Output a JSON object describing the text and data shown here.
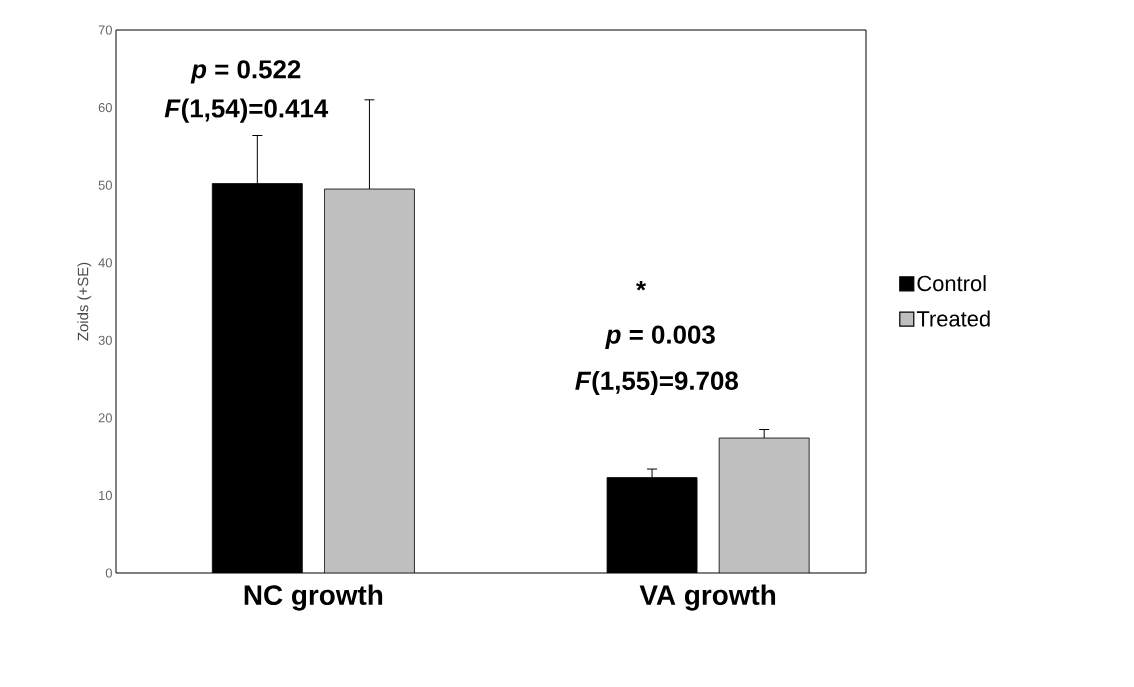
{
  "chart_data": {
    "type": "bar",
    "ylabel": "Zoids (+SE)",
    "categories": [
      "NC growth",
      "VA growth"
    ],
    "series": [
      {
        "name": "Control",
        "color": "#000000",
        "values": [
          50.2,
          12.3
        ],
        "errors": [
          [
            50.2,
            56.4
          ],
          [
            12.3,
            13.4
          ]
        ]
      },
      {
        "name": "Treated",
        "color": "#bfbfbf",
        "values": [
          49.5,
          17.4
        ],
        "errors": [
          [
            49.5,
            61.0
          ],
          [
            17.4,
            18.5
          ]
        ]
      }
    ],
    "ylim": [
      0,
      70
    ],
    "yticks": [
      0,
      10,
      20,
      30,
      40,
      50,
      60,
      70
    ],
    "legend": "right",
    "annotations": [
      "*p* = 0.522",
      "*F*(1,54)=0.414",
      "*",
      "*p* = 0.003",
      "*F*(1,55)=9.708"
    ]
  }
}
